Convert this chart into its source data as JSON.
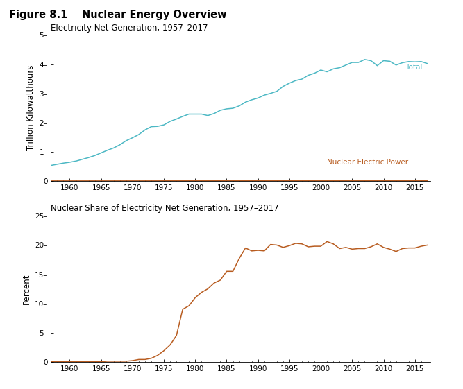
{
  "title": "Figure 8.1    Nuclear Energy Overview",
  "subplot1_label": "Electricity Net Generation, 1957–2017",
  "subplot1_ylabel": "Trillion Kilowatthours",
  "subplot2_label": "Nuclear Share of Electricity Net Generation, 1957–2017",
  "subplot2_ylabel": "Percent",
  "years": [
    1957,
    1958,
    1959,
    1960,
    1961,
    1962,
    1963,
    1964,
    1965,
    1966,
    1967,
    1968,
    1969,
    1970,
    1971,
    1972,
    1973,
    1974,
    1975,
    1976,
    1977,
    1978,
    1979,
    1980,
    1981,
    1982,
    1983,
    1984,
    1985,
    1986,
    1987,
    1988,
    1989,
    1990,
    1991,
    1992,
    1993,
    1994,
    1995,
    1996,
    1997,
    1998,
    1999,
    2000,
    2001,
    2002,
    2003,
    2004,
    2005,
    2006,
    2007,
    2008,
    2009,
    2010,
    2011,
    2012,
    2013,
    2014,
    2015,
    2016,
    2017
  ],
  "total_gen": [
    0.53,
    0.57,
    0.61,
    0.64,
    0.68,
    0.74,
    0.8,
    0.87,
    0.96,
    1.05,
    1.13,
    1.24,
    1.38,
    1.48,
    1.59,
    1.75,
    1.86,
    1.87,
    1.92,
    2.04,
    2.12,
    2.21,
    2.29,
    2.29,
    2.29,
    2.24,
    2.31,
    2.42,
    2.47,
    2.49,
    2.57,
    2.7,
    2.78,
    2.84,
    2.94,
    3.0,
    3.07,
    3.24,
    3.35,
    3.44,
    3.49,
    3.62,
    3.69,
    3.8,
    3.74,
    3.84,
    3.88,
    3.97,
    4.06,
    4.06,
    4.16,
    4.12,
    3.95,
    4.12,
    4.1,
    3.97,
    4.05,
    4.09,
    4.08,
    4.09,
    4.02
  ],
  "nuclear_gen_billion_kwh": [
    0.002,
    0.005,
    0.006,
    0.005,
    0.018,
    0.025,
    0.034,
    0.037,
    0.04,
    0.056,
    0.085,
    0.13,
    0.19,
    0.239,
    0.383,
    0.544,
    0.83,
    1.13,
    1.9,
    2.97,
    4.0,
    2.76,
    2.55,
    2.51,
    2.73,
    3.16,
    3.25,
    3.55,
    3.83,
    4.14,
    4.45,
    4.67,
    5.29,
    5.76,
    6.12,
    6.18,
    6.1,
    6.4,
    6.73,
    6.74,
    6.22,
    6.74,
    7.28,
    7.6,
    7.68,
    7.8,
    7.64,
    7.88,
    7.81,
    7.87,
    8.06,
    7.68,
    6.99,
    8.04,
    7.9,
    7.69,
    7.9,
    8.01,
    7.97,
    8.06,
    8.06
  ],
  "nuclear_share_pct": [
    0.0,
    0.0,
    0.0,
    0.0,
    0.0,
    0.0,
    0.0,
    0.0,
    0.0,
    0.1,
    0.1,
    0.1,
    0.1,
    0.2,
    0.4,
    0.4,
    0.6,
    1.1,
    1.9,
    2.9,
    4.5,
    9.0,
    9.6,
    11.0,
    11.9,
    12.5,
    13.5,
    14.0,
    15.5,
    15.5,
    17.7,
    19.5,
    19.0,
    19.1,
    19.0,
    20.1,
    20.0,
    19.6,
    19.9,
    20.3,
    20.2,
    19.7,
    19.8,
    19.8,
    20.6,
    20.2,
    19.4,
    19.6,
    19.3,
    19.4,
    19.4,
    19.7,
    20.2,
    19.6,
    19.3,
    18.9,
    19.4,
    19.5,
    19.5,
    19.8,
    20.0
  ],
  "total_color": "#4cb8c4",
  "nuclear_color": "#b85c20",
  "background_color": "#ffffff",
  "fig_title_fontsize": 10.5,
  "label_fontsize": 8.5,
  "tick_fontsize": 7.5,
  "annotation_fontsize": 7.5,
  "yticks1": [
    0,
    1,
    2,
    3,
    4,
    5
  ],
  "ytick_labels1": [
    "0",
    "1–",
    "2–",
    "3–",
    "4–",
    "5–"
  ],
  "yticks2": [
    0,
    5,
    10,
    15,
    20,
    25
  ],
  "ytick_labels2": [
    "0",
    "5–",
    "10–",
    "15–",
    "20–",
    "25–"
  ],
  "xticks": [
    1960,
    1965,
    1970,
    1975,
    1980,
    1985,
    1990,
    1995,
    2000,
    2005,
    2010,
    2015
  ],
  "total_label": "Total",
  "nuclear_label": "Nuclear Electric Power"
}
